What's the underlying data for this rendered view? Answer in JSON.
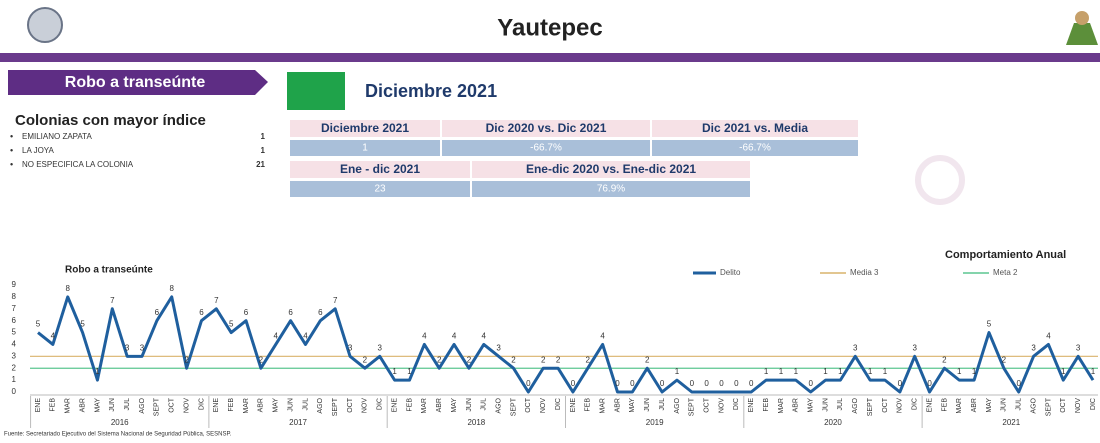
{
  "header": {
    "title": "Yautepec"
  },
  "section": {
    "label": "Robo a transeúnte",
    "period": "Diciembre 2021"
  },
  "colonias": {
    "title": "Colonias con mayor índice",
    "items": [
      {
        "name": "EMILIANO ZAPATA",
        "count": 1
      },
      {
        "name": "LA JOYA",
        "count": 1
      },
      {
        "name": "NO ESPECIFICA LA COLONIA",
        "count": 21
      }
    ]
  },
  "table1": {
    "headers": [
      "Diciembre 2021",
      "Dic 2020 vs. Dic 2021",
      "Dic 2021 vs. Media"
    ],
    "values": [
      "1",
      "-66.7%",
      "-66.7%"
    ]
  },
  "table2": {
    "headers": [
      "Ene - dic 2021",
      "Ene-dic 2020 vs. Ene-dic 2021"
    ],
    "values": [
      "23",
      "76.9%"
    ]
  },
  "chart_data": {
    "type": "line",
    "title": "Robo a transeúnte",
    "subtitle": "Comportamiento Anual",
    "categories": [
      "ENE",
      "FEB",
      "MAR",
      "ABR",
      "MAY",
      "JUN",
      "JUL",
      "AGO",
      "SEPT",
      "OCT",
      "NOV",
      "DIC",
      "ENE",
      "FEB",
      "MAR",
      "ABR",
      "MAY",
      "JUN",
      "JUL",
      "AGO",
      "SEPT",
      "OCT",
      "NOV",
      "DIC",
      "ENE",
      "FEB",
      "MAR",
      "ABR",
      "MAY",
      "JUN",
      "JUL",
      "AGO",
      "SEPT",
      "OCT",
      "NOV",
      "DIC",
      "ENE",
      "FEB",
      "MAR",
      "ABR",
      "MAY",
      "JUN",
      "JUL",
      "AGO",
      "SEPT",
      "OCT",
      "NOV",
      "DIC",
      "ENE",
      "FEB",
      "MAR",
      "ABR",
      "MAY",
      "JUN",
      "JUL",
      "AGO",
      "SEPT",
      "OCT",
      "NOV",
      "DIC",
      "ENE",
      "FEB",
      "MAR",
      "ABR",
      "MAY",
      "JUN",
      "JUL",
      "AGO",
      "SEPT",
      "OCT",
      "NOV",
      "DIC"
    ],
    "years": [
      "2016",
      "2017",
      "2018",
      "2019",
      "2020",
      "2021"
    ],
    "series": [
      {
        "name": "Delito",
        "color": "#1f5f9e",
        "values": [
          5,
          4,
          8,
          5,
          1,
          7,
          3,
          3,
          6,
          8,
          2,
          6,
          7,
          5,
          6,
          2,
          4,
          6,
          4,
          6,
          7,
          3,
          2,
          3,
          1,
          1,
          4,
          2,
          4,
          2,
          4,
          3,
          2,
          0,
          2,
          2,
          0,
          2,
          4,
          0,
          0,
          2,
          0,
          1,
          0,
          0,
          0,
          0,
          0,
          1,
          1,
          1,
          0,
          1,
          1,
          3,
          1,
          1,
          0,
          3,
          0,
          2,
          1,
          1,
          5,
          2,
          0,
          3,
          4,
          1,
          3,
          1
        ]
      }
    ],
    "reference_lines": [
      {
        "name": "Media 3",
        "value": 3,
        "color": "#d9b36b"
      },
      {
        "name": "Meta 2",
        "value": 2,
        "color": "#5cc690"
      }
    ],
    "ylim": [
      0,
      9
    ],
    "yticks": [
      0,
      1,
      2,
      3,
      4,
      5,
      6,
      7,
      8,
      9
    ],
    "grid": false,
    "source": "Fuente: Secretariado Ejecutivo del Sistema Nacional de Seguridad Pública, SESNSP."
  }
}
